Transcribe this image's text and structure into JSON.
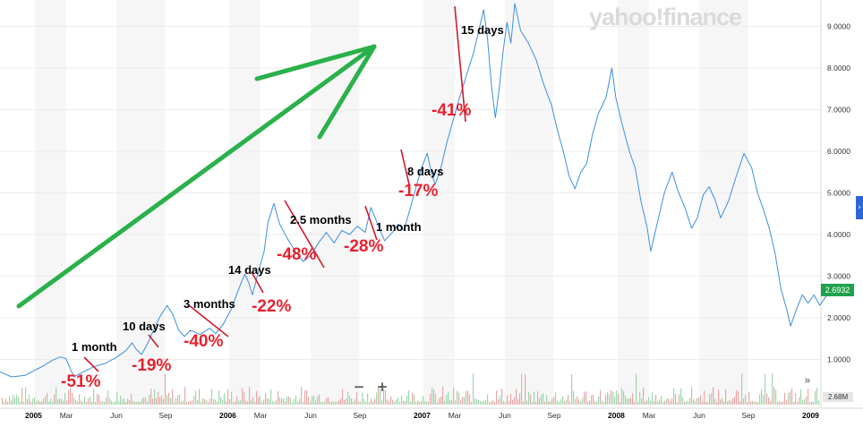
{
  "chart_data": {
    "type": "line",
    "watermark": "yahoo!finance",
    "last_price_label": "2.6932",
    "volume_label": "2.68M",
    "y_ticks": [
      {
        "v": 1,
        "label": "1.0000"
      },
      {
        "v": 2,
        "label": "2.0000"
      },
      {
        "v": 3,
        "label": "3.0000"
      },
      {
        "v": 4,
        "label": "4.0000"
      },
      {
        "v": 5,
        "label": "5.0000"
      },
      {
        "v": 6,
        "label": "6.0000"
      },
      {
        "v": 7,
        "label": "7.0000"
      },
      {
        "v": 8,
        "label": "8.0000"
      },
      {
        "v": 9,
        "label": "9.0000"
      }
    ],
    "x_ticks": [
      {
        "t": 2005.0,
        "label": "2005",
        "year": true
      },
      {
        "t": 2005.16,
        "label": "Mar"
      },
      {
        "t": 2005.42,
        "label": "Jun"
      },
      {
        "t": 2005.67,
        "label": "Sep"
      },
      {
        "t": 2006.0,
        "label": "2006",
        "year": true
      },
      {
        "t": 2006.16,
        "label": "Mar"
      },
      {
        "t": 2006.42,
        "label": "Jun"
      },
      {
        "t": 2006.67,
        "label": "Sep"
      },
      {
        "t": 2007.0,
        "label": "2007",
        "year": true
      },
      {
        "t": 2007.16,
        "label": "Mar"
      },
      {
        "t": 2007.42,
        "label": "Jun"
      },
      {
        "t": 2007.67,
        "label": "Sep"
      },
      {
        "t": 2008.0,
        "label": "2008",
        "year": true
      },
      {
        "t": 2008.16,
        "label": "Mar"
      },
      {
        "t": 2008.42,
        "label": "Jun"
      },
      {
        "t": 2008.67,
        "label": "Sep"
      },
      {
        "t": 2009.0,
        "label": "2009",
        "year": true
      }
    ],
    "series": [
      {
        "color": "#3d8fe0",
        "points": [
          [
            2004.82,
            0.7
          ],
          [
            2004.88,
            0.58
          ],
          [
            2004.95,
            0.62
          ],
          [
            2005.0,
            0.74
          ],
          [
            2005.05,
            0.86
          ],
          [
            2005.09,
            0.98
          ],
          [
            2005.13,
            1.06
          ],
          [
            2005.16,
            1.02
          ],
          [
            2005.18,
            0.8
          ],
          [
            2005.2,
            0.58
          ],
          [
            2005.24,
            0.68
          ],
          [
            2005.3,
            0.82
          ],
          [
            2005.36,
            0.9
          ],
          [
            2005.42,
            1.05
          ],
          [
            2005.47,
            1.22
          ],
          [
            2005.5,
            1.4
          ],
          [
            2005.52,
            1.25
          ],
          [
            2005.55,
            1.12
          ],
          [
            2005.58,
            1.38
          ],
          [
            2005.61,
            1.7
          ],
          [
            2005.64,
            2.0
          ],
          [
            2005.68,
            2.3
          ],
          [
            2005.71,
            2.08
          ],
          [
            2005.74,
            1.7
          ],
          [
            2005.77,
            1.55
          ],
          [
            2005.8,
            1.7
          ],
          [
            2005.85,
            1.6
          ],
          [
            2005.9,
            1.75
          ],
          [
            2005.93,
            1.62
          ],
          [
            2005.97,
            1.85
          ],
          [
            2006.01,
            2.2
          ],
          [
            2006.05,
            2.7
          ],
          [
            2006.08,
            3.05
          ],
          [
            2006.1,
            2.85
          ],
          [
            2006.12,
            2.55
          ],
          [
            2006.15,
            3.1
          ],
          [
            2006.18,
            3.6
          ],
          [
            2006.2,
            4.3
          ],
          [
            2006.23,
            4.75
          ],
          [
            2006.26,
            4.25
          ],
          [
            2006.3,
            3.9
          ],
          [
            2006.34,
            3.6
          ],
          [
            2006.38,
            3.35
          ],
          [
            2006.42,
            3.5
          ],
          [
            2006.46,
            3.8
          ],
          [
            2006.5,
            4.05
          ],
          [
            2006.54,
            3.8
          ],
          [
            2006.58,
            4.1
          ],
          [
            2006.62,
            4.0
          ],
          [
            2006.66,
            4.2
          ],
          [
            2006.7,
            4.05
          ],
          [
            2006.73,
            4.65
          ],
          [
            2006.76,
            4.3
          ],
          [
            2006.8,
            3.85
          ],
          [
            2006.84,
            4.05
          ],
          [
            2006.87,
            4.25
          ],
          [
            2006.9,
            4.1
          ],
          [
            2006.93,
            4.6
          ],
          [
            2006.96,
            5.1
          ],
          [
            2006.99,
            5.6
          ],
          [
            2007.02,
            5.95
          ],
          [
            2007.04,
            5.5
          ],
          [
            2007.06,
            5.2
          ],
          [
            2007.09,
            5.6
          ],
          [
            2007.12,
            6.2
          ],
          [
            2007.15,
            6.7
          ],
          [
            2007.18,
            7.2
          ],
          [
            2007.22,
            7.8
          ],
          [
            2007.26,
            8.4
          ],
          [
            2007.29,
            9.0
          ],
          [
            2007.31,
            9.4
          ],
          [
            2007.33,
            8.7
          ],
          [
            2007.35,
            7.6
          ],
          [
            2007.37,
            6.8
          ],
          [
            2007.39,
            7.5
          ],
          [
            2007.41,
            8.4
          ],
          [
            2007.43,
            9.1
          ],
          [
            2007.45,
            8.6
          ],
          [
            2007.47,
            9.55
          ],
          [
            2007.5,
            8.9
          ],
          [
            2007.54,
            8.6
          ],
          [
            2007.58,
            8.2
          ],
          [
            2007.62,
            7.6
          ],
          [
            2007.66,
            7.1
          ],
          [
            2007.69,
            6.5
          ],
          [
            2007.72,
            6.0
          ],
          [
            2007.75,
            5.4
          ],
          [
            2007.78,
            5.1
          ],
          [
            2007.81,
            5.5
          ],
          [
            2007.84,
            5.7
          ],
          [
            2007.87,
            6.4
          ],
          [
            2007.9,
            6.9
          ],
          [
            2007.94,
            7.3
          ],
          [
            2007.97,
            8.0
          ],
          [
            2007.99,
            7.3
          ],
          [
            2008.02,
            6.7
          ],
          [
            2008.06,
            6.0
          ],
          [
            2008.09,
            5.6
          ],
          [
            2008.12,
            4.8
          ],
          [
            2008.15,
            4.2
          ],
          [
            2008.17,
            3.6
          ],
          [
            2008.2,
            4.2
          ],
          [
            2008.24,
            5.0
          ],
          [
            2008.28,
            5.5
          ],
          [
            2008.31,
            5.05
          ],
          [
            2008.35,
            4.6
          ],
          [
            2008.38,
            4.15
          ],
          [
            2008.41,
            4.4
          ],
          [
            2008.44,
            4.95
          ],
          [
            2008.47,
            5.15
          ],
          [
            2008.5,
            4.85
          ],
          [
            2008.53,
            4.4
          ],
          [
            2008.57,
            4.8
          ],
          [
            2008.61,
            5.4
          ],
          [
            2008.65,
            5.95
          ],
          [
            2008.69,
            5.6
          ],
          [
            2008.72,
            5.0
          ],
          [
            2008.75,
            4.6
          ],
          [
            2008.78,
            4.15
          ],
          [
            2008.81,
            3.55
          ],
          [
            2008.84,
            2.7
          ],
          [
            2008.87,
            2.2
          ],
          [
            2008.89,
            1.8
          ],
          [
            2008.92,
            2.2
          ],
          [
            2008.95,
            2.55
          ],
          [
            2008.98,
            2.35
          ],
          [
            2009.01,
            2.55
          ],
          [
            2009.04,
            2.3
          ],
          [
            2009.07,
            2.5
          ],
          [
            2009.11,
            2.69
          ]
        ]
      }
    ]
  },
  "annotations": [
    {
      "duration": "1 month",
      "change": "-51%"
    },
    {
      "duration": "10 days",
      "change": "-19%"
    },
    {
      "duration": "3 months",
      "change": "-40%"
    },
    {
      "duration": "14 days",
      "change": "-22%"
    },
    {
      "duration": "2.5 months",
      "change": "-48%"
    },
    {
      "duration": "1 month",
      "change": "-28%"
    },
    {
      "duration": "8 days",
      "change": "-17%"
    },
    {
      "duration": "15 days",
      "change": "-41%"
    }
  ],
  "controls": {
    "zoom_out": "−",
    "zoom_in": "+",
    "expand": "»",
    "side_tab": "›"
  }
}
